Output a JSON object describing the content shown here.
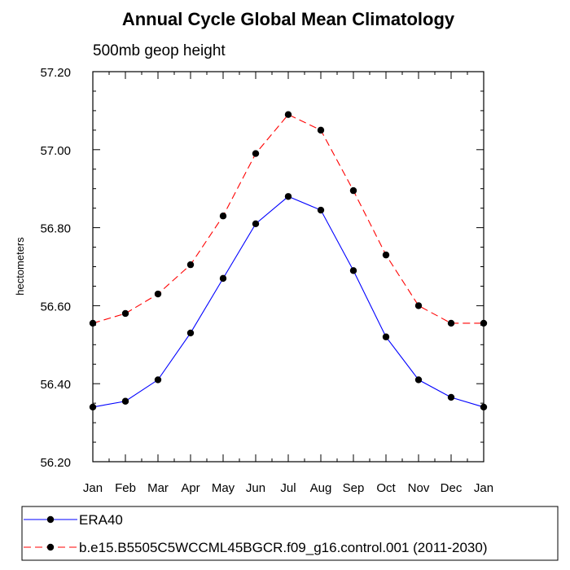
{
  "chart_data": {
    "type": "line",
    "title": "Annual Cycle Global Mean Climatology",
    "subtitle": "500mb geop height",
    "xlabel": "",
    "ylabel": "hectometers",
    "categories": [
      "Jan",
      "Feb",
      "Mar",
      "Apr",
      "May",
      "Jun",
      "Jul",
      "Aug",
      "Sep",
      "Oct",
      "Nov",
      "Dec",
      "Jan"
    ],
    "ylim": [
      56.2,
      57.2
    ],
    "yticks": [
      "56.20",
      "56.40",
      "56.60",
      "56.80",
      "57.00",
      "57.20"
    ],
    "grid": false,
    "legend_position": "bottom",
    "series": [
      {
        "name": "ERA40",
        "color": "#0000ff",
        "dash": "solid",
        "values": [
          56.34,
          56.355,
          56.41,
          56.53,
          56.67,
          56.81,
          56.88,
          56.845,
          56.69,
          56.52,
          56.41,
          56.365,
          56.34
        ]
      },
      {
        "name": "b.e15.B5505C5WCCML45BGCR.f09_g16.control.001 (2011-2030)",
        "color": "#ff0000",
        "dash": "dashed",
        "values": [
          56.555,
          56.58,
          56.63,
          56.705,
          56.83,
          56.99,
          57.09,
          57.05,
          56.895,
          56.73,
          56.6,
          56.555,
          56.555
        ]
      }
    ]
  }
}
